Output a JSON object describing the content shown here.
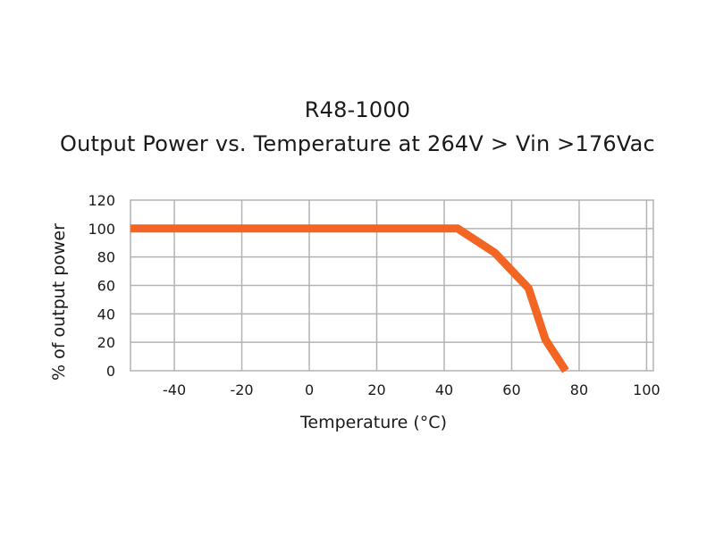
{
  "chart_data": {
    "type": "line",
    "title": "R48-1000",
    "subtitle": "Output Power vs. Temperature at 264V > Vin >176Vac",
    "xlabel": "Temperature (°C)",
    "ylabel": "% of output power",
    "xlim": [
      -53,
      102
    ],
    "ylim": [
      0,
      120
    ],
    "x_ticks": [
      -40,
      -20,
      0,
      20,
      40,
      60,
      80,
      100
    ],
    "x_tick_labels": [
      "-40",
      "-20",
      "0",
      "20",
      "40",
      "60",
      "80",
      "100"
    ],
    "y_ticks": [
      0,
      20,
      40,
      60,
      80,
      100,
      120
    ],
    "y_tick_labels": [
      "0",
      "20",
      "40",
      "60",
      "80",
      "100",
      "120"
    ],
    "grid": true,
    "series": [
      {
        "x": [
          -53,
          40,
          44,
          55,
          65,
          70,
          76
        ],
        "y": [
          100,
          100,
          100,
          83,
          58,
          22,
          0
        ]
      }
    ],
    "colors": {
      "line": "#f26522",
      "grid": "#b3b3b3",
      "axis_text": "#1a1a1a"
    }
  }
}
